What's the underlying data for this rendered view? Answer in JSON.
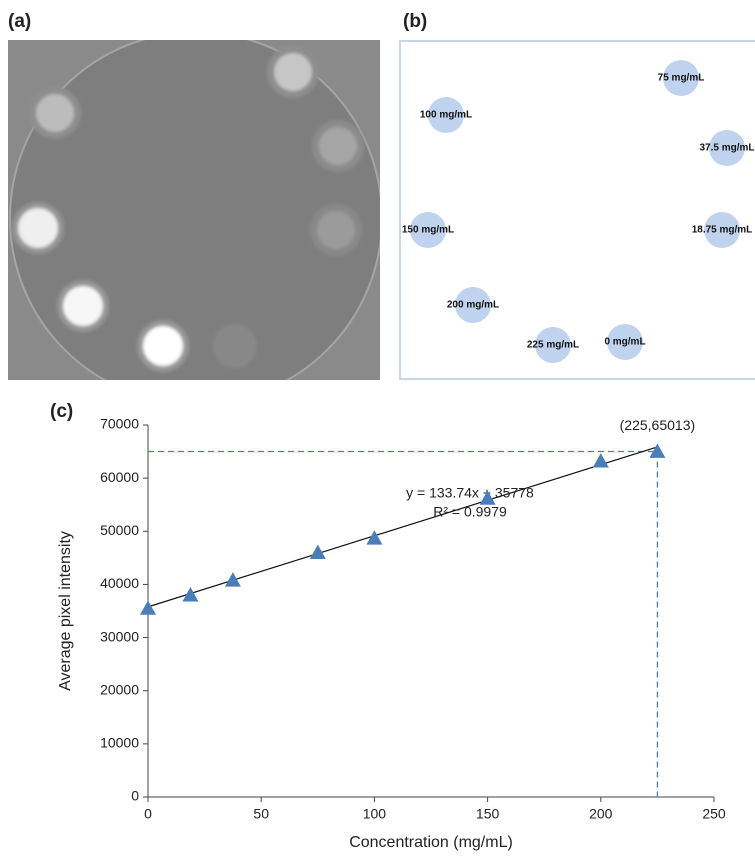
{
  "panel_labels": [
    "(a)",
    "(b)",
    "(c)"
  ],
  "panel_b": {
    "labels": [
      "75 mg/mL",
      "100 mg/mL",
      "37.5 mg/mL",
      "150 mg/mL",
      "18.75 mg/mL",
      "200 mg/mL",
      "225 mg/mL",
      "0 mg/mL"
    ]
  },
  "chart_data": {
    "type": "scatter",
    "x_label": "Concentration (mg/mL)",
    "y_label": "Average pixel intensity",
    "x": [
      0,
      18.75,
      37.5,
      75,
      100,
      150,
      200,
      225
    ],
    "values": [
      35500,
      38000,
      40800,
      46000,
      48700,
      56200,
      63200,
      65013
    ],
    "color": "#4a7ebb",
    "xlim": [
      0,
      250
    ],
    "xticks": [
      0,
      50,
      100,
      150,
      200,
      250
    ],
    "ylim": [
      0,
      70000
    ],
    "yticks": [
      0,
      10000,
      20000,
      30000,
      40000,
      50000,
      60000,
      70000
    ],
    "grid": false,
    "trendline": {
      "slope": 133.74,
      "intercept": 35778,
      "label": "y = 133.74x + 35778",
      "r2_label": "R² = 0.9979"
    },
    "annotation": {
      "text": "(225,65013)"
    }
  }
}
